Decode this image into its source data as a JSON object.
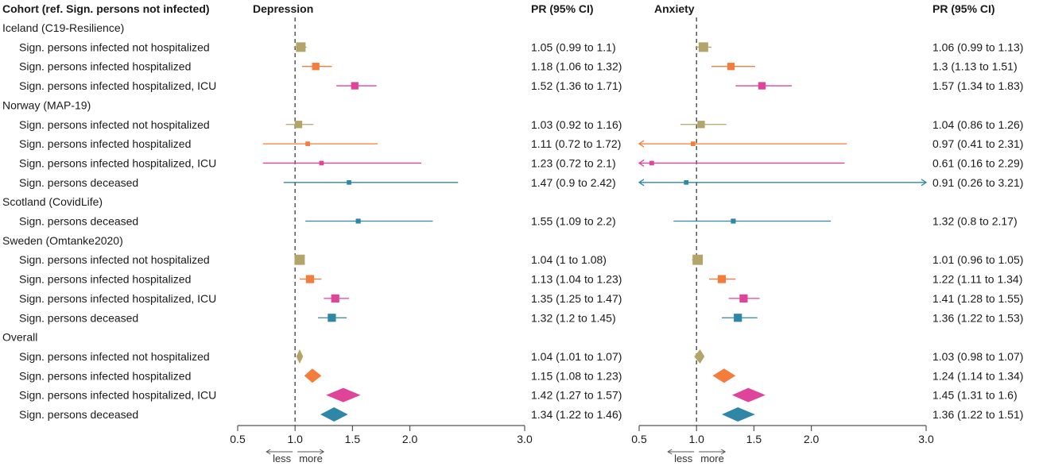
{
  "chart_data": {
    "type": "forest",
    "header": "Cohort (ref. Sign. persons not infected)",
    "xlim": [
      0.5,
      3.0
    ],
    "ticks": [
      "0.5",
      "1.0",
      "1.5",
      "2.0",
      "3.0"
    ],
    "tick_values": [
      0.5,
      1.0,
      1.5,
      2.0,
      3.0
    ],
    "reference_line": 1.0,
    "direction_labels": {
      "less": "less",
      "more": "more"
    },
    "colors": {
      "not_hosp": "#b3a56a",
      "hosp": "#f47c3c",
      "icu": "#e0449a",
      "deceased": "#2f87a8"
    },
    "panels": [
      {
        "title": "Depression",
        "ci_header": "PR (95% CI)"
      },
      {
        "title": "Anxiety",
        "ci_header": "PR  (95% CI)"
      }
    ],
    "rows": [
      {
        "kind": "group",
        "label": "Iceland (C19-Resilience)"
      },
      {
        "kind": "study",
        "label": "Sign. persons infected not hospitalized",
        "cat": "not_hosp",
        "w": 1.0,
        "dep": {
          "pr": 1.05,
          "lo": 0.99,
          "hi": 1.1,
          "text": "1.05 (0.99 to 1.1)"
        },
        "anx": {
          "pr": 1.06,
          "lo": 0.99,
          "hi": 1.13,
          "text": "1.06 (0.99 to 1.13)"
        }
      },
      {
        "kind": "study",
        "label": "Sign. persons infected hospitalized",
        "cat": "hosp",
        "w": 0.7,
        "dep": {
          "pr": 1.18,
          "lo": 1.06,
          "hi": 1.32,
          "text": "1.18 (1.06 to 1.32)"
        },
        "anx": {
          "pr": 1.3,
          "lo": 1.13,
          "hi": 1.51,
          "text": "1.3 (1.13 to 1.51)"
        }
      },
      {
        "kind": "study",
        "label": "Sign. persons infected hospitalized, ICU",
        "cat": "icu",
        "w": 0.7,
        "dep": {
          "pr": 1.52,
          "lo": 1.36,
          "hi": 1.71,
          "text": "1.52 (1.36 to 1.71)"
        },
        "anx": {
          "pr": 1.57,
          "lo": 1.34,
          "hi": 1.83,
          "text": "1.57 (1.34 to 1.83)"
        }
      },
      {
        "kind": "group",
        "label": "Norway (MAP-19)"
      },
      {
        "kind": "study",
        "label": "Sign. persons infected not hospitalized",
        "cat": "not_hosp",
        "w": 0.7,
        "dep": {
          "pr": 1.03,
          "lo": 0.92,
          "hi": 1.16,
          "text": "1.03 (0.92 to 1.16)"
        },
        "anx": {
          "pr": 1.04,
          "lo": 0.86,
          "hi": 1.26,
          "text": "1.04 (0.86 to 1.26)"
        }
      },
      {
        "kind": "study",
        "label": "Sign. persons infected hospitalized",
        "cat": "hosp",
        "w": 0.3,
        "dep": {
          "pr": 1.11,
          "lo": 0.72,
          "hi": 1.72,
          "text": "1.11 (0.72 to 1.72)"
        },
        "anx": {
          "pr": 0.97,
          "lo": 0.41,
          "hi": 2.31,
          "text": "0.97 (0.41 to 2.31)"
        }
      },
      {
        "kind": "study",
        "label": "Sign. persons infected hospitalized, ICU",
        "cat": "icu",
        "w": 0.3,
        "dep": {
          "pr": 1.23,
          "lo": 0.72,
          "hi": 2.1,
          "text": "1.23 (0.72 to 2.1)"
        },
        "anx": {
          "pr": 0.61,
          "lo": 0.16,
          "hi": 2.29,
          "text": "0.61 (0.16 to 2.29)"
        }
      },
      {
        "kind": "study",
        "label": "Sign. persons deceased",
        "cat": "deceased",
        "w": 0.3,
        "dep": {
          "pr": 1.47,
          "lo": 0.9,
          "hi": 2.42,
          "text": "1.47 (0.9 to 2.42)"
        },
        "anx": {
          "pr": 0.91,
          "lo": 0.26,
          "hi": 3.21,
          "text": "0.91 (0.26 to 3.21)"
        }
      },
      {
        "kind": "group",
        "label": "Scotland (CovidLife)"
      },
      {
        "kind": "study",
        "label": "Sign. persons deceased",
        "cat": "deceased",
        "w": 0.35,
        "dep": {
          "pr": 1.55,
          "lo": 1.09,
          "hi": 2.2,
          "text": "1.55 (1.09 to 2.2)"
        },
        "anx": {
          "pr": 1.32,
          "lo": 0.8,
          "hi": 2.17,
          "text": "1.32 (0.8 to 2.17)"
        }
      },
      {
        "kind": "group",
        "label": "Sweden (Omtanke2020)"
      },
      {
        "kind": "study",
        "label": "Sign. persons infected not hospitalized",
        "cat": "not_hosp",
        "w": 1.1,
        "dep": {
          "pr": 1.04,
          "lo": 1.0,
          "hi": 1.08,
          "text": "1.04 (1 to 1.08)"
        },
        "anx": {
          "pr": 1.01,
          "lo": 0.96,
          "hi": 1.05,
          "text": "1.01 (0.96 to 1.05)"
        }
      },
      {
        "kind": "study",
        "label": "Sign. persons infected hospitalized",
        "cat": "hosp",
        "w": 0.8,
        "dep": {
          "pr": 1.13,
          "lo": 1.04,
          "hi": 1.23,
          "text": "1.13 (1.04 to 1.23)"
        },
        "anx": {
          "pr": 1.22,
          "lo": 1.11,
          "hi": 1.34,
          "text": "1.22 (1.11 to 1.34)"
        }
      },
      {
        "kind": "study",
        "label": "Sign. persons infected hospitalized, ICU",
        "cat": "icu",
        "w": 0.8,
        "dep": {
          "pr": 1.35,
          "lo": 1.25,
          "hi": 1.47,
          "text": "1.35 (1.25 to 1.47)"
        },
        "anx": {
          "pr": 1.41,
          "lo": 1.28,
          "hi": 1.55,
          "text": "1.41 (1.28 to 1.55)"
        }
      },
      {
        "kind": "study",
        "label": "Sign. persons deceased",
        "cat": "deceased",
        "w": 0.8,
        "dep": {
          "pr": 1.32,
          "lo": 1.2,
          "hi": 1.45,
          "text": "1.32 (1.2 to 1.45)"
        },
        "anx": {
          "pr": 1.36,
          "lo": 1.22,
          "hi": 1.53,
          "text": "1.36 (1.22 to 1.53)"
        }
      },
      {
        "kind": "group",
        "label": "Overall"
      },
      {
        "kind": "summary",
        "label": "Sign. persons infected not hospitalized",
        "cat": "not_hosp",
        "dep": {
          "pr": 1.04,
          "lo": 1.01,
          "hi": 1.07,
          "text": "1.04 (1.01 to 1.07)"
        },
        "anx": {
          "pr": 1.03,
          "lo": 0.98,
          "hi": 1.07,
          "text": "1.03 (0.98 to 1.07)"
        }
      },
      {
        "kind": "summary",
        "label": "Sign. persons infected hospitalized",
        "cat": "hosp",
        "dep": {
          "pr": 1.15,
          "lo": 1.08,
          "hi": 1.23,
          "text": "1.15 (1.08 to 1.23)"
        },
        "anx": {
          "pr": 1.24,
          "lo": 1.14,
          "hi": 1.34,
          "text": "1.24 (1.14 to 1.34)"
        }
      },
      {
        "kind": "summary",
        "label": "Sign. persons infected hospitalized, ICU",
        "cat": "icu",
        "dep": {
          "pr": 1.42,
          "lo": 1.27,
          "hi": 1.57,
          "text": "1.42 (1.27 to 1.57)"
        },
        "anx": {
          "pr": 1.45,
          "lo": 1.31,
          "hi": 1.6,
          "text": "1.45 (1.31 to 1.6)"
        }
      },
      {
        "kind": "summary",
        "label": "Sign. persons deceased",
        "cat": "deceased",
        "dep": {
          "pr": 1.34,
          "lo": 1.22,
          "hi": 1.46,
          "text": "1.34 (1.22 to 1.46)"
        },
        "anx": {
          "pr": 1.36,
          "lo": 1.22,
          "hi": 1.51,
          "text": "1.36 (1.22 to 1.51)"
        }
      }
    ]
  }
}
